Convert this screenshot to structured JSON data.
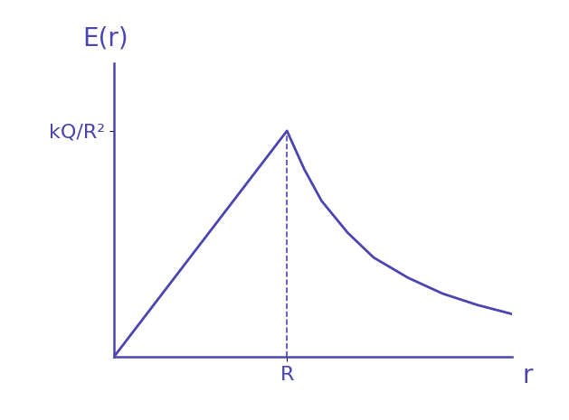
{
  "chart_data": {
    "type": "line",
    "x_label": "r",
    "y_label": "E(r)",
    "x": [
      0,
      1,
      1.1,
      1.2,
      1.35,
      1.5,
      1.7,
      1.9,
      2.1,
      2.3
    ],
    "values": [
      0,
      1,
      0.83,
      0.69,
      0.55,
      0.44,
      0.35,
      0.28,
      0.23,
      0.19
    ],
    "color": "#4b45b0",
    "xlim": [
      0,
      2.3
    ],
    "ylim": [
      0,
      1.3
    ],
    "xticks": [
      {
        "value": 1,
        "label": "R"
      }
    ],
    "yticks": [
      {
        "value": 1,
        "label": "kQ/R²"
      }
    ],
    "grid": false
  }
}
